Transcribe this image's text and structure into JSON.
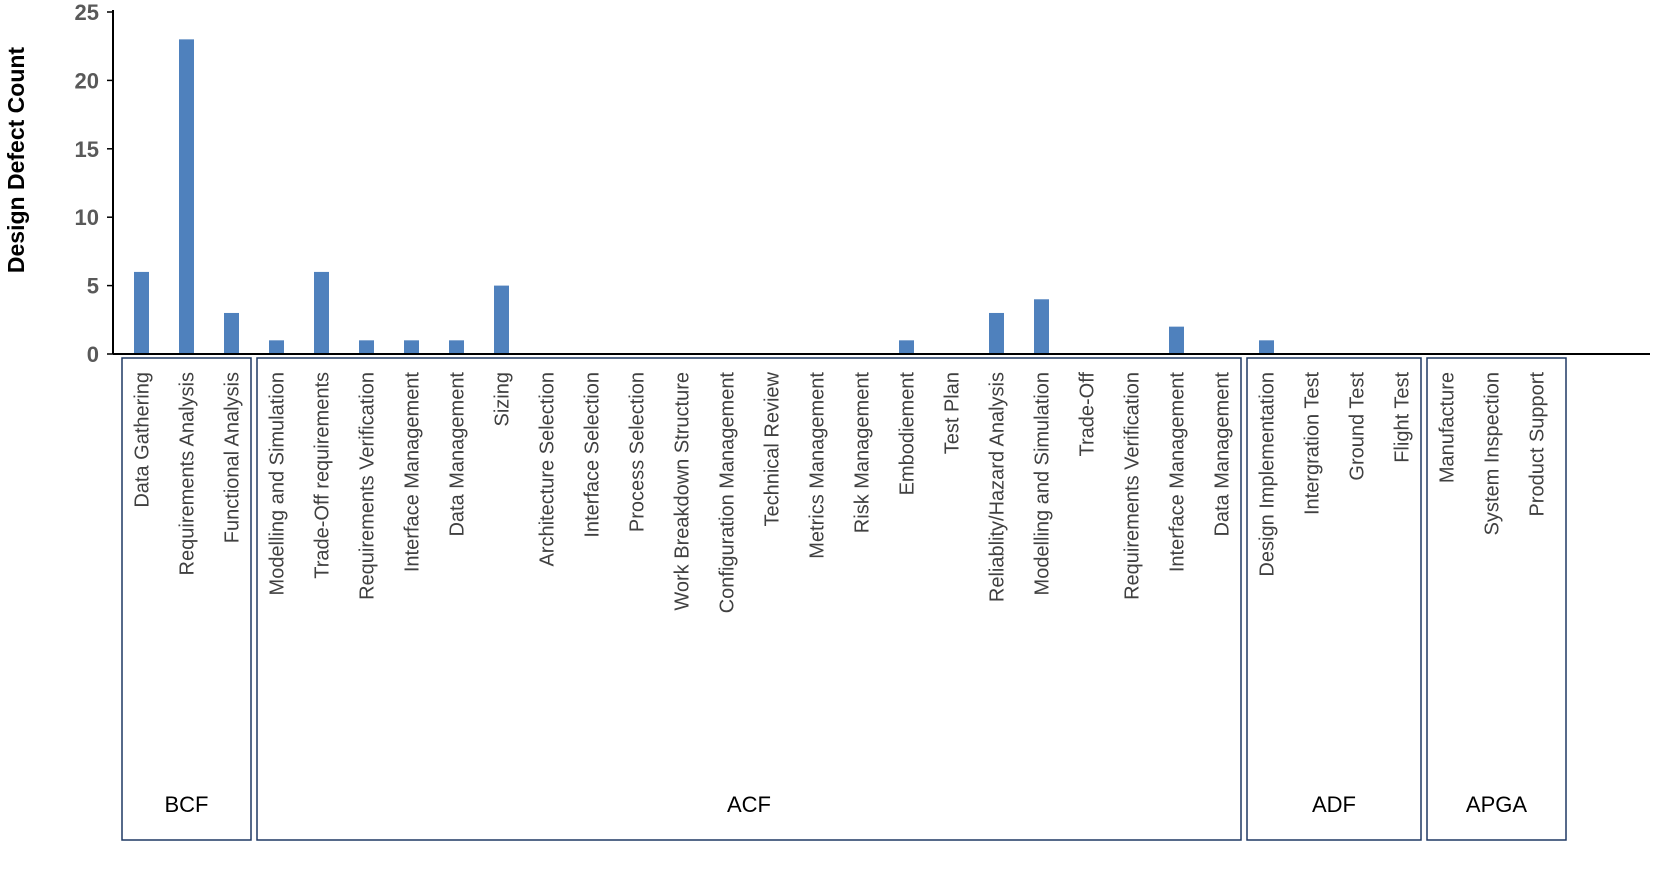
{
  "chart_data": {
    "type": "bar",
    "title": "",
    "xlabel": "",
    "ylabel": "Design Defect Count",
    "ylim": [
      0,
      25
    ],
    "yticks": [
      0,
      5,
      10,
      15,
      20,
      25
    ],
    "grid": false,
    "legend": "none",
    "bar_color": "#4F81BD",
    "categories": [
      "Data Gathering",
      "Requirements Analysis",
      "Functional Analysis",
      "Modelling and Simulation",
      "Trade-Off requirements",
      "Requirements Verification",
      "Interface Management",
      "Data Management",
      "Sizing",
      "Architecture Selection",
      "Interface Selection",
      "Process Selection",
      "Work Breakdown Structure",
      "Configuration Management",
      "Technical Review",
      "Metrics Management",
      "Risk Management",
      "Embodiement",
      "Test Plan",
      "Reliablity/Hazard Analysis",
      "Modelling and Simulation",
      "Trade-Off",
      "Requirements Verification",
      "Interface Management",
      "Data Management",
      "Design Implementation",
      "Intergration Test",
      "Ground Test",
      "Flight Test",
      "Manufacture",
      "System Inspection",
      "Product Support"
    ],
    "values": [
      6,
      23,
      3,
      1,
      6,
      1,
      1,
      1,
      5,
      0,
      0,
      0,
      0,
      0,
      0,
      0,
      0,
      1,
      0,
      3,
      4,
      0,
      0,
      2,
      0,
      1,
      0,
      0,
      0,
      0,
      0,
      0
    ],
    "groups": [
      {
        "name": "BCF",
        "count": 3
      },
      {
        "name": "ACF",
        "count": 22
      },
      {
        "name": "ADF",
        "count": 4
      },
      {
        "name": "APGA",
        "count": 3
      }
    ]
  }
}
